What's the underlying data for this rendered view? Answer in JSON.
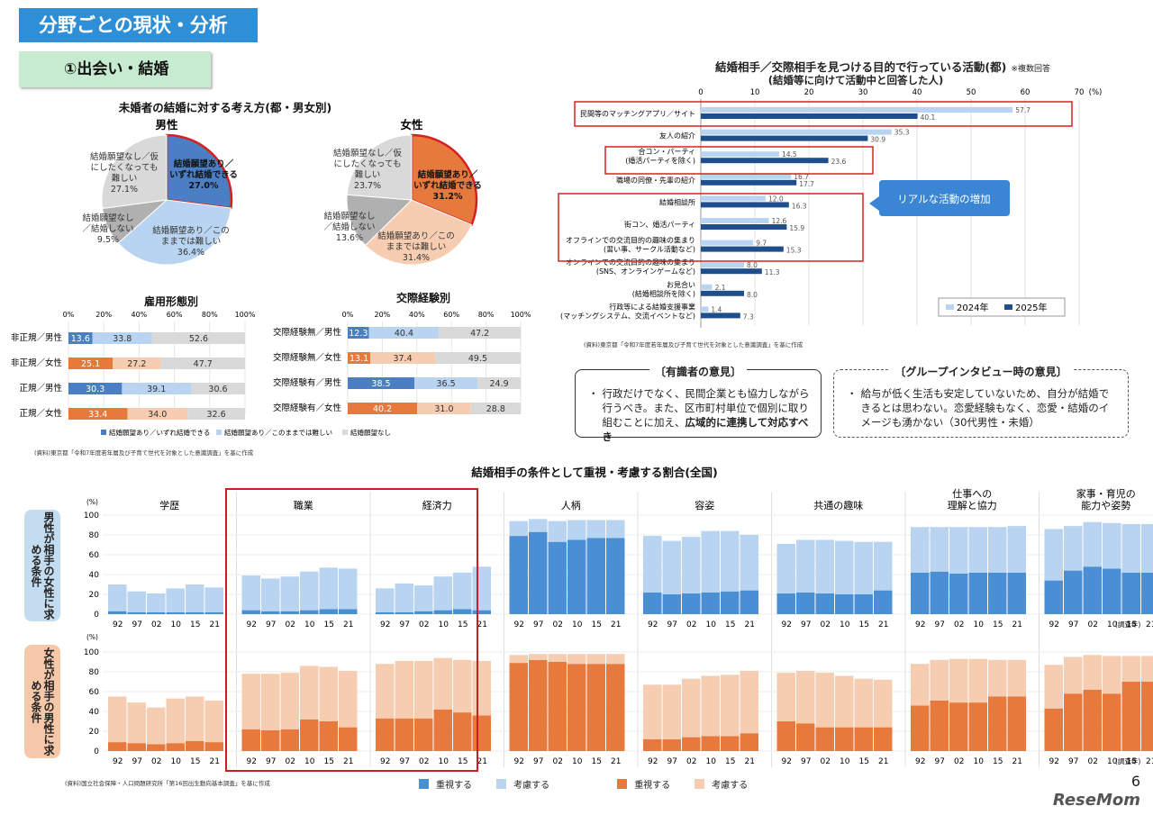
{
  "header": {
    "section_title": "分野ごとの現状・分析",
    "subsection_title": "①出会い・結婚"
  },
  "pies": {
    "title": "未婚者の結婚に対する考え方(都・男女別)",
    "male": {
      "label": "男性",
      "slices": [
        {
          "name": "結婚願望あり／いずれ結婚できる",
          "value": 27.0,
          "value_label": "27.0%",
          "color": "#4a7fc4"
        },
        {
          "name": "結婚願望あり／このままでは難しい",
          "value": 36.4,
          "value_label": "36.4%",
          "color": "#b8d4f0"
        },
        {
          "name": "結婚願望なし／結婚しない",
          "value": 9.5,
          "value_label": "9.5%",
          "color": "#b0b0b0"
        },
        {
          "name": "結婚願望なし／仮にしたくなっても難しい",
          "value": 27.1,
          "value_label": "27.1%",
          "color": "#d9d9d9"
        }
      ]
    },
    "female": {
      "label": "女性",
      "slices": [
        {
          "name": "結婚願望あり／いずれ結婚できる",
          "value": 31.2,
          "value_label": "31.2%",
          "color": "#e8793c"
        },
        {
          "name": "結婚願望あり／このままでは難しい",
          "value": 31.4,
          "value_label": "31.4%",
          "color": "#f6cdb0"
        },
        {
          "name": "結婚願望なし／結婚しない",
          "value": 13.6,
          "value_label": "13.6%",
          "color": "#b0b0b0"
        },
        {
          "name": "結婚願望なし／仮にしたくなっても難しい",
          "value": 23.7,
          "value_label": "23.7%",
          "color": "#d9d9d9"
        }
      ]
    }
  },
  "employment": {
    "title": "雇用形態別",
    "ticks": [
      "0%",
      "20%",
      "40%",
      "60%",
      "80%",
      "100%"
    ],
    "rows": [
      {
        "label": "非正規／男性",
        "values": [
          13.6,
          33.8,
          52.6
        ],
        "scheme": "blue"
      },
      {
        "label": "非正規／女性",
        "values": [
          25.1,
          27.2,
          47.7
        ],
        "scheme": "orange"
      },
      {
        "label": "正規／男性",
        "values": [
          30.3,
          39.1,
          30.6
        ],
        "scheme": "blue"
      },
      {
        "label": "正規／女性",
        "values": [
          33.4,
          34.0,
          32.6
        ],
        "scheme": "orange"
      }
    ]
  },
  "dating": {
    "title": "交際経験別",
    "ticks": [
      "0%",
      "20%",
      "40%",
      "60%",
      "80%",
      "100%"
    ],
    "rows": [
      {
        "label": "交際経験無／男性",
        "values": [
          12.3,
          40.4,
          47.2
        ],
        "scheme": "blue"
      },
      {
        "label": "交際経験無／女性",
        "values": [
          13.1,
          37.4,
          49.5
        ],
        "scheme": "orange"
      },
      {
        "label": "交際経験有／男性",
        "values": [
          38.5,
          36.5,
          24.9
        ],
        "scheme": "blue"
      },
      {
        "label": "交際経験有／女性",
        "values": [
          40.2,
          31.0,
          28.8
        ],
        "scheme": "orange"
      }
    ]
  },
  "hbar_legend": [
    "結婚願望あり／いずれ結婚できる",
    "結婚願望あり／このままでは難しい",
    "結婚願望なし"
  ],
  "source_left": "(資料)東京都「令和7年度若年層及び子育て世代を対象とした意識調査」を基に作成",
  "activities": {
    "title": "結婚相手／交際相手を見つける目的で行っている活動(都)",
    "note": "※複数回答",
    "subtitle": "(結婚等に向けて活動中と回答した人)",
    "unit": "(%)",
    "ticks": [
      0,
      10,
      20,
      30,
      40,
      50,
      60,
      70
    ],
    "series": [
      {
        "name": "2024年",
        "color": "#b8d4f0"
      },
      {
        "name": "2025年",
        "color": "#1f4e8c"
      }
    ],
    "items": [
      {
        "label1": "民間等のマッチングアプリ／サイト",
        "label2": "",
        "v2024": 57.7,
        "v2025": 40.1
      },
      {
        "label1": "友人の紹介",
        "label2": "",
        "v2024": 35.3,
        "v2025": 30.9
      },
      {
        "label1": "合コン・パーティ",
        "label2": "(婚活パーティを除く)",
        "v2024": 14.5,
        "v2025": 23.6
      },
      {
        "label1": "職場の同僚・先輩の紹介",
        "label2": "",
        "v2024": 16.7,
        "v2025": 17.7
      },
      {
        "label1": "結婚相談所",
        "label2": "",
        "v2024": 12.0,
        "v2025": 16.3
      },
      {
        "label1": "街コン、婚活パーティ",
        "label2": "",
        "v2024": 12.6,
        "v2025": 15.9
      },
      {
        "label1": "オフラインでの交流目的の趣味の集まり",
        "label2": "(習い事、サークル活動など)",
        "v2024": 9.7,
        "v2025": 15.3
      },
      {
        "label1": "オンラインでの交流目的の趣味の集まり",
        "label2": "(SNS、オンラインゲームなど)",
        "v2024": 8.0,
        "v2025": 11.3
      },
      {
        "label1": "お見合い",
        "label2": "(結婚相談所を除く)",
        "v2024": 2.1,
        "v2025": 8.0
      },
      {
        "label1": "行政等による結婚支援事業",
        "label2": "(マッチングシステム、交流イベントなど)",
        "v2024": 1.4,
        "v2025": 7.3
      }
    ],
    "callout": "リアルな活動の増加",
    "source": "(資料)東京都「令和7年度若年層及び子育て世代を対象とした意識調査」を基に作成"
  },
  "opinions": {
    "experts": {
      "title": "〔有識者の意見〕",
      "bullet": "・",
      "text_a": "行政だけでなく、民間企業とも協力しながら行うべき。また、区市町村単位で個別に取り組むことに加え、",
      "text_b": "広域的に連携して対応すべき"
    },
    "group": {
      "title": "〔グループインタビュー時の意見〕",
      "bullet": "・",
      "text": "給与が低く生活も安定していないため、自分が結婚できるとは思わない。恋愛経験もなく、恋愛・結婚のイメージも湧かない（30代男性・未婚）"
    }
  },
  "conditions": {
    "title": "結婚相手の条件として重視・考慮する割合(全国)",
    "years": [
      "92",
      "97",
      "02",
      "10",
      "15",
      "21"
    ],
    "year_suffix": "(調査年)",
    "y_unit": "(%)",
    "y_ticks": [
      0,
      20,
      40,
      60,
      80,
      100
    ],
    "row_labels": [
      "男性が相手の女性に求める条件",
      "女性が相手の男性に求める条件"
    ],
    "categories": [
      "学歴",
      "職業",
      "経済力",
      "人柄",
      "容姿",
      "共通の趣味",
      "仕事への理解と協力",
      "家事・育児の能力や姿勢"
    ],
    "male": [
      {
        "important": [
          3,
          2,
          2,
          2,
          2,
          2
        ],
        "consider": [
          27,
          21,
          19,
          24,
          28,
          25
        ]
      },
      {
        "important": [
          4,
          3,
          3,
          4,
          5,
          5
        ],
        "consider": [
          35,
          33,
          35,
          39,
          42,
          41
        ]
      },
      {
        "important": [
          2,
          2,
          3,
          4,
          5,
          4
        ],
        "consider": [
          24,
          29,
          26,
          34,
          37,
          44
        ]
      },
      {
        "important": [
          79,
          83,
          73,
          75,
          77,
          77
        ],
        "consider": [
          15,
          13,
          21,
          20,
          18,
          18
        ]
      },
      {
        "important": [
          22,
          20,
          21,
          22,
          23,
          24
        ],
        "consider": [
          57,
          54,
          57,
          62,
          61,
          56
        ]
      },
      {
        "important": [
          21,
          22,
          21,
          20,
          20,
          24
        ],
        "consider": [
          50,
          53,
          54,
          54,
          53,
          49
        ]
      },
      {
        "important": [
          42,
          43,
          41,
          42,
          42,
          42
        ],
        "consider": [
          46,
          45,
          47,
          46,
          46,
          47
        ]
      },
      {
        "important": [
          34,
          44,
          48,
          46,
          42,
          42
        ],
        "consider": [
          52,
          45,
          45,
          46,
          49,
          49
        ]
      }
    ],
    "female": [
      {
        "important": [
          9,
          8,
          7,
          8,
          10,
          9
        ],
        "consider": [
          46,
          41,
          37,
          45,
          45,
          42
        ]
      },
      {
        "important": [
          22,
          21,
          22,
          32,
          30,
          24
        ],
        "consider": [
          56,
          57,
          57,
          54,
          55,
          57
        ]
      },
      {
        "important": [
          33,
          33,
          33,
          42,
          39,
          36
        ],
        "consider": [
          55,
          58,
          58,
          52,
          53,
          55
        ]
      },
      {
        "important": [
          89,
          92,
          90,
          88,
          88,
          88
        ],
        "consider": [
          8,
          6,
          8,
          10,
          10,
          10
        ]
      },
      {
        "important": [
          12,
          12,
          14,
          15,
          15,
          18
        ],
        "consider": [
          55,
          55,
          59,
          61,
          62,
          63
        ]
      },
      {
        "important": [
          30,
          28,
          24,
          24,
          24,
          24
        ],
        "consider": [
          49,
          53,
          55,
          52,
          49,
          48
        ]
      },
      {
        "important": [
          46,
          51,
          49,
          49,
          55,
          55
        ],
        "consider": [
          42,
          41,
          44,
          44,
          37,
          37
        ]
      },
      {
        "important": [
          43,
          58,
          62,
          58,
          70,
          70
        ],
        "consider": [
          44,
          37,
          35,
          38,
          26,
          26
        ]
      }
    ],
    "legend": [
      {
        "label": "重視する",
        "color": "#4a8fd4"
      },
      {
        "label": "考慮する",
        "color": "#b8d4f0"
      },
      {
        "label": "重視する",
        "color": "#e8793c"
      },
      {
        "label": "考慮する",
        "color": "#f6cdb0"
      }
    ],
    "source": "(資料)国立社会保障・人口問題研究所「第16回出生動向基本調査」を基に作成"
  },
  "footer": {
    "page": "6",
    "brand": "ReseMom"
  }
}
